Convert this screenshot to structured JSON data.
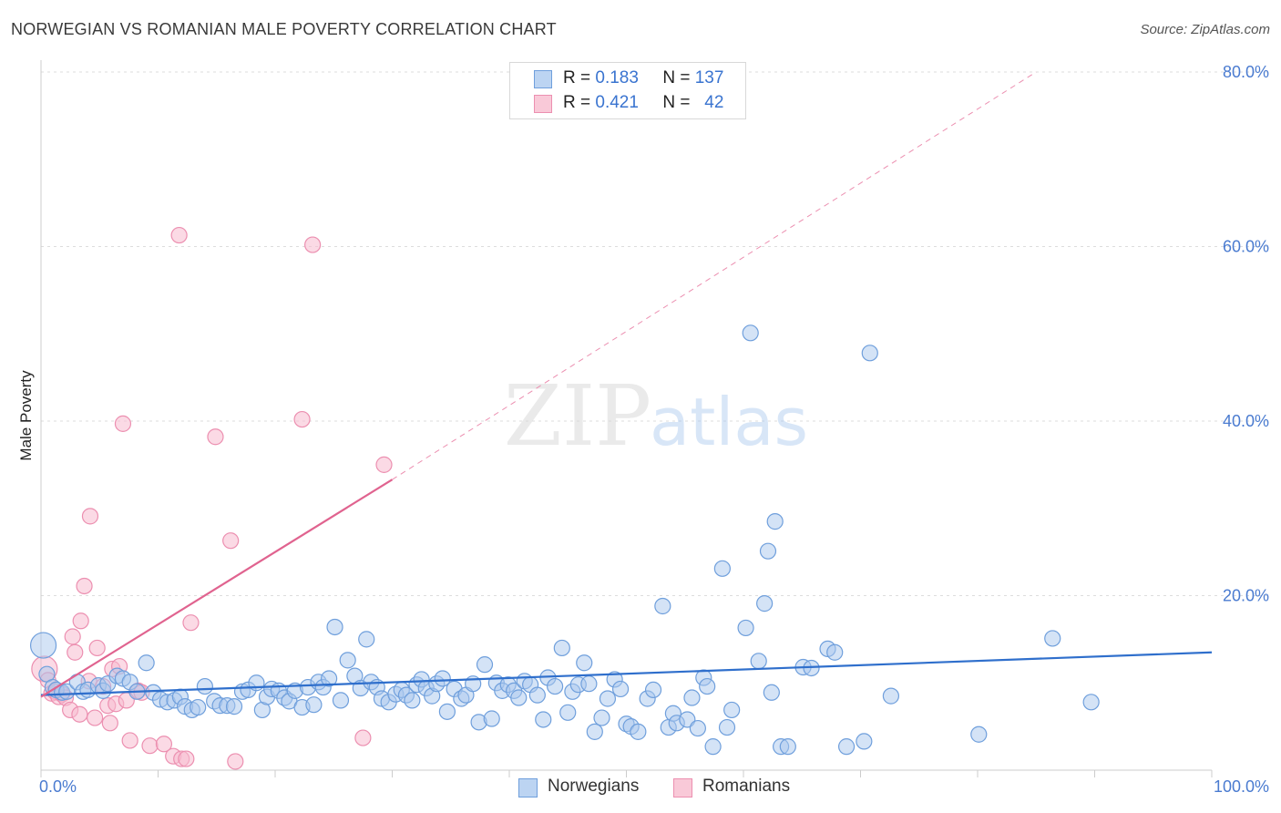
{
  "title": "NORWEGIAN VS ROMANIAN MALE POVERTY CORRELATION CHART",
  "source": "Source: ZipAtlas.com",
  "watermark": {
    "zip": "ZIP",
    "atlas": "atlas"
  },
  "legend": {
    "rows": [
      {
        "r_label": "R =",
        "r_value": "0.183",
        "n_label": "N =",
        "n_value": "137"
      },
      {
        "r_label": "R =",
        "r_value": "0.421",
        "n_label": "N =",
        "n_value": "42"
      }
    ]
  },
  "bottom_legend": [
    "Norwegians",
    "Romanians"
  ],
  "colors": {
    "blue_fill": "#a9c7ee",
    "blue_stroke": "#6f9fdc",
    "blue_line": "#2f6fcc",
    "pink_fill": "#f7bcd0",
    "pink_stroke": "#ec8fb0",
    "pink_line": "#e0638f",
    "grid": "#dddddd",
    "tick_text": "#4a7bd0"
  },
  "chart_data": {
    "type": "scatter",
    "title": "NORWEGIAN VS ROMANIAN MALE POVERTY CORRELATION CHART",
    "xlabel": "",
    "ylabel": "Male Poverty",
    "xlim": [
      0,
      100
    ],
    "ylim": [
      0,
      80
    ],
    "x_tick_labels": [
      "0.0%",
      "100.0%"
    ],
    "y_ticks": [
      20,
      40,
      60,
      80
    ],
    "y_tick_labels": [
      "20.0%",
      "40.0%",
      "60.0%",
      "80.0%"
    ],
    "grid": true,
    "series": [
      {
        "name": "Norwegians",
        "r": 0.183,
        "n": 137,
        "trend": {
          "x": [
            0,
            100
          ],
          "y": [
            8.6,
            13.5
          ],
          "style": "solid"
        },
        "points": [
          [
            0.2,
            14.3
          ],
          [
            0.5,
            11.0
          ],
          [
            1.0,
            9.5
          ],
          [
            1.3,
            9.2
          ],
          [
            1.8,
            8.9
          ],
          [
            2.2,
            9.0
          ],
          [
            3.1,
            10.1
          ],
          [
            3.6,
            9.0
          ],
          [
            4.0,
            9.2
          ],
          [
            4.9,
            9.7
          ],
          [
            5.3,
            9.1
          ],
          [
            5.7,
            9.9
          ],
          [
            6.5,
            10.8
          ],
          [
            7.0,
            10.5
          ],
          [
            7.6,
            10.1
          ],
          [
            8.2,
            9.0
          ],
          [
            9.0,
            12.3
          ],
          [
            9.6,
            8.9
          ],
          [
            10.2,
            8.1
          ],
          [
            10.8,
            7.8
          ],
          [
            11.4,
            8.0
          ],
          [
            11.9,
            8.4
          ],
          [
            12.3,
            7.3
          ],
          [
            12.9,
            6.9
          ],
          [
            13.4,
            7.2
          ],
          [
            14.0,
            9.6
          ],
          [
            14.8,
            7.9
          ],
          [
            15.3,
            7.4
          ],
          [
            15.9,
            7.4
          ],
          [
            16.5,
            7.3
          ],
          [
            17.2,
            9.0
          ],
          [
            17.7,
            9.2
          ],
          [
            18.4,
            10.0
          ],
          [
            18.9,
            6.9
          ],
          [
            19.3,
            8.4
          ],
          [
            19.7,
            9.3
          ],
          [
            20.3,
            9.1
          ],
          [
            20.8,
            8.3
          ],
          [
            21.2,
            7.9
          ],
          [
            21.7,
            9.1
          ],
          [
            22.3,
            7.2
          ],
          [
            22.8,
            9.5
          ],
          [
            23.3,
            7.5
          ],
          [
            23.7,
            10.1
          ],
          [
            24.1,
            9.5
          ],
          [
            24.6,
            10.5
          ],
          [
            25.1,
            16.4
          ],
          [
            25.6,
            8.0
          ],
          [
            26.2,
            12.6
          ],
          [
            26.8,
            10.8
          ],
          [
            27.3,
            9.4
          ],
          [
            27.8,
            15.0
          ],
          [
            28.2,
            10.1
          ],
          [
            28.7,
            9.5
          ],
          [
            29.1,
            8.2
          ],
          [
            29.7,
            7.8
          ],
          [
            30.3,
            8.7
          ],
          [
            30.8,
            9.2
          ],
          [
            31.2,
            8.6
          ],
          [
            31.7,
            8.0
          ],
          [
            32.1,
            9.8
          ],
          [
            32.5,
            10.4
          ],
          [
            32.9,
            9.4
          ],
          [
            33.4,
            8.5
          ],
          [
            33.8,
            9.9
          ],
          [
            34.3,
            10.5
          ],
          [
            34.7,
            6.7
          ],
          [
            35.3,
            9.3
          ],
          [
            35.9,
            8.2
          ],
          [
            36.3,
            8.6
          ],
          [
            36.9,
            9.9
          ],
          [
            37.4,
            5.5
          ],
          [
            37.9,
            12.1
          ],
          [
            38.5,
            5.9
          ],
          [
            38.9,
            10.0
          ],
          [
            39.4,
            9.1
          ],
          [
            39.9,
            9.8
          ],
          [
            40.4,
            9.1
          ],
          [
            40.8,
            8.3
          ],
          [
            41.3,
            10.2
          ],
          [
            41.8,
            9.8
          ],
          [
            42.4,
            8.6
          ],
          [
            42.9,
            5.8
          ],
          [
            43.3,
            10.6
          ],
          [
            43.9,
            9.6
          ],
          [
            44.5,
            14.0
          ],
          [
            45.0,
            6.6
          ],
          [
            45.4,
            9.0
          ],
          [
            45.9,
            9.8
          ],
          [
            46.4,
            12.3
          ],
          [
            46.8,
            9.9
          ],
          [
            47.3,
            4.4
          ],
          [
            47.9,
            6.0
          ],
          [
            48.4,
            8.2
          ],
          [
            49.0,
            10.4
          ],
          [
            49.5,
            9.3
          ],
          [
            50.0,
            5.3
          ],
          [
            50.4,
            5.0
          ],
          [
            51.0,
            4.4
          ],
          [
            51.8,
            8.2
          ],
          [
            52.3,
            9.2
          ],
          [
            53.1,
            18.8
          ],
          [
            53.6,
            4.9
          ],
          [
            54.0,
            6.5
          ],
          [
            54.3,
            5.4
          ],
          [
            55.2,
            5.8
          ],
          [
            55.6,
            8.3
          ],
          [
            56.1,
            4.8
          ],
          [
            56.6,
            10.6
          ],
          [
            56.9,
            9.6
          ],
          [
            57.4,
            2.7
          ],
          [
            58.2,
            23.1
          ],
          [
            58.6,
            4.9
          ],
          [
            59.0,
            6.9
          ],
          [
            60.2,
            16.3
          ],
          [
            60.6,
            50.1
          ],
          [
            61.3,
            12.5
          ],
          [
            61.8,
            19.1
          ],
          [
            62.1,
            25.1
          ],
          [
            62.4,
            8.9
          ],
          [
            62.7,
            28.5
          ],
          [
            63.2,
            2.7
          ],
          [
            63.8,
            2.7
          ],
          [
            65.1,
            11.8
          ],
          [
            65.8,
            11.7
          ],
          [
            67.2,
            13.9
          ],
          [
            67.8,
            13.5
          ],
          [
            68.8,
            2.7
          ],
          [
            70.3,
            3.3
          ],
          [
            70.8,
            47.8
          ],
          [
            72.6,
            8.5
          ],
          [
            80.1,
            4.1
          ],
          [
            86.4,
            15.1
          ],
          [
            89.7,
            7.8
          ]
        ]
      },
      {
        "name": "Romanians",
        "r": 0.421,
        "n": 42,
        "trend": {
          "x": [
            0,
            30
          ],
          "y": [
            8.4,
            33.3
          ],
          "style": "solid"
        },
        "trend_extension": {
          "x": [
            30,
            85
          ],
          "y": [
            33.3,
            80
          ],
          "style": "dashed"
        },
        "points": [
          [
            0.3,
            11.6
          ],
          [
            0.6,
            10.3
          ],
          [
            0.9,
            8.8
          ],
          [
            1.2,
            9.0
          ],
          [
            1.5,
            8.4
          ],
          [
            1.8,
            8.7
          ],
          [
            2.1,
            8.3
          ],
          [
            2.5,
            6.9
          ],
          [
            2.7,
            15.3
          ],
          [
            2.9,
            13.5
          ],
          [
            3.3,
            6.4
          ],
          [
            3.4,
            17.1
          ],
          [
            3.7,
            21.1
          ],
          [
            4.1,
            10.2
          ],
          [
            4.2,
            29.1
          ],
          [
            4.6,
            6.0
          ],
          [
            4.8,
            14.0
          ],
          [
            5.3,
            9.6
          ],
          [
            5.7,
            7.4
          ],
          [
            5.9,
            5.4
          ],
          [
            6.1,
            11.6
          ],
          [
            6.4,
            7.6
          ],
          [
            6.7,
            11.9
          ],
          [
            7.0,
            39.7
          ],
          [
            7.3,
            8.0
          ],
          [
            7.6,
            3.4
          ],
          [
            8.3,
            9.1
          ],
          [
            8.6,
            8.9
          ],
          [
            9.3,
            2.8
          ],
          [
            10.5,
            3.0
          ],
          [
            11.3,
            1.6
          ],
          [
            11.8,
            61.3
          ],
          [
            12.0,
            1.3
          ],
          [
            12.4,
            1.3
          ],
          [
            12.8,
            16.9
          ],
          [
            14.9,
            38.2
          ],
          [
            16.2,
            26.3
          ],
          [
            16.6,
            1.0
          ],
          [
            22.3,
            40.2
          ],
          [
            23.2,
            60.2
          ],
          [
            27.5,
            3.7
          ],
          [
            29.3,
            35.0
          ]
        ]
      }
    ]
  }
}
